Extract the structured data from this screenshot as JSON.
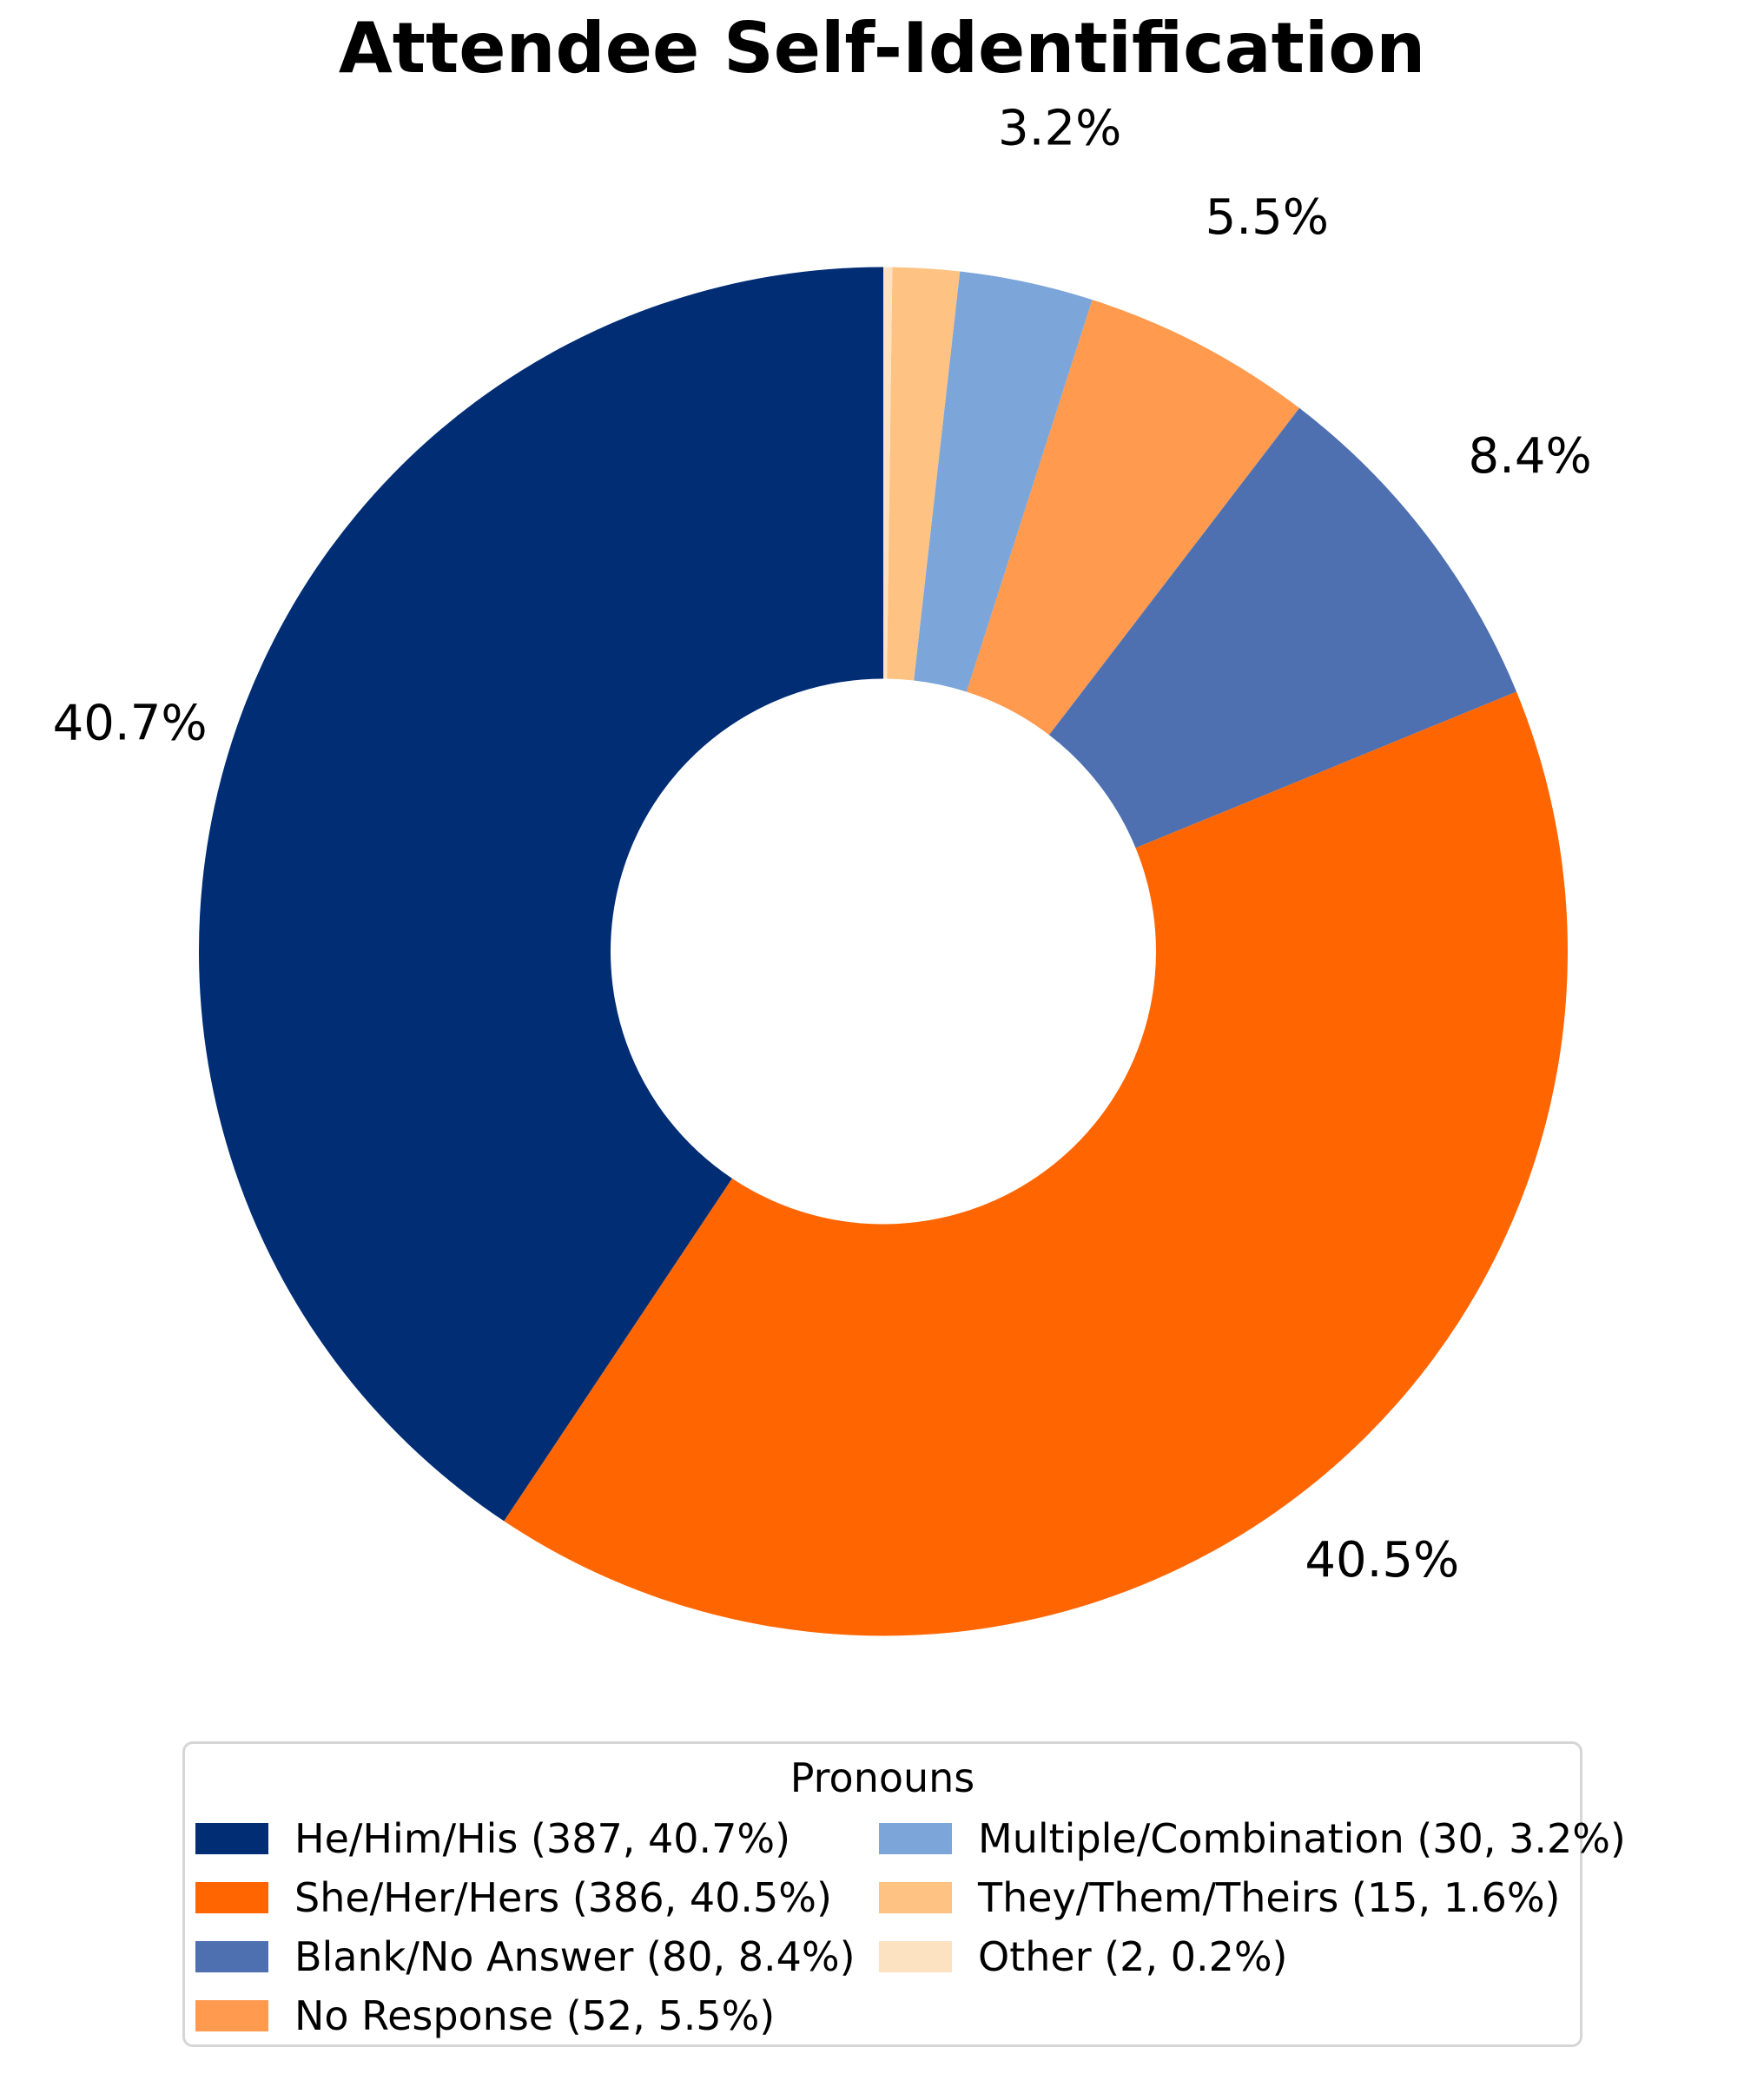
{
  "chart_data": {
    "type": "pie",
    "title": "Attendee Self-Identification",
    "legend_title": "Pronouns",
    "donut": true,
    "start_angle": 90,
    "counterclock": true,
    "slices": [
      {
        "label": "He/Him/His",
        "count": 387,
        "pct": 40.7,
        "pct_label": "40.7%",
        "color": "#002d74",
        "legend": "He/Him/His (387, 40.7%)",
        "label_distance": 1.15
      },
      {
        "label": "She/Her/Hers",
        "count": 386,
        "pct": 40.5,
        "pct_label": "40.5%",
        "color": "#ff6602",
        "legend": "She/Her/Hers (386, 40.5%)",
        "label_distance": 1.15
      },
      {
        "label": "Blank/No Answer",
        "count": 80,
        "pct": 8.4,
        "pct_label": "8.4%",
        "color": "#4e70b1",
        "legend": "Blank/No Answer (80, 8.4%)",
        "label_distance": 1.19
      },
      {
        "label": "No Response",
        "count": 52,
        "pct": 5.5,
        "pct_label": "5.5%",
        "color": "#ff9a4e",
        "legend": "No Response (52, 5.5%)",
        "label_distance": 1.21
      },
      {
        "label": "Multiple/Combination",
        "count": 30,
        "pct": 3.2,
        "pct_label": "3.2%",
        "color": "#7ca5da",
        "legend": "Multiple/Combination (30, 3.2%)",
        "label_distance": 1.23
      },
      {
        "label": "They/Them/Theirs",
        "count": 15,
        "pct": 1.6,
        "pct_label": "",
        "color": "#fec283",
        "legend": "They/Them/Theirs (15, 1.6%)",
        "label_distance": 0
      },
      {
        "label": "Other",
        "count": 2,
        "pct": 0.2,
        "pct_label": "",
        "color": "#fde2c2",
        "legend": "Other (2, 0.2%)",
        "label_distance": 0
      }
    ],
    "legend_columns": [
      [
        0,
        1,
        2,
        3
      ],
      [
        4,
        5,
        6
      ]
    ]
  }
}
